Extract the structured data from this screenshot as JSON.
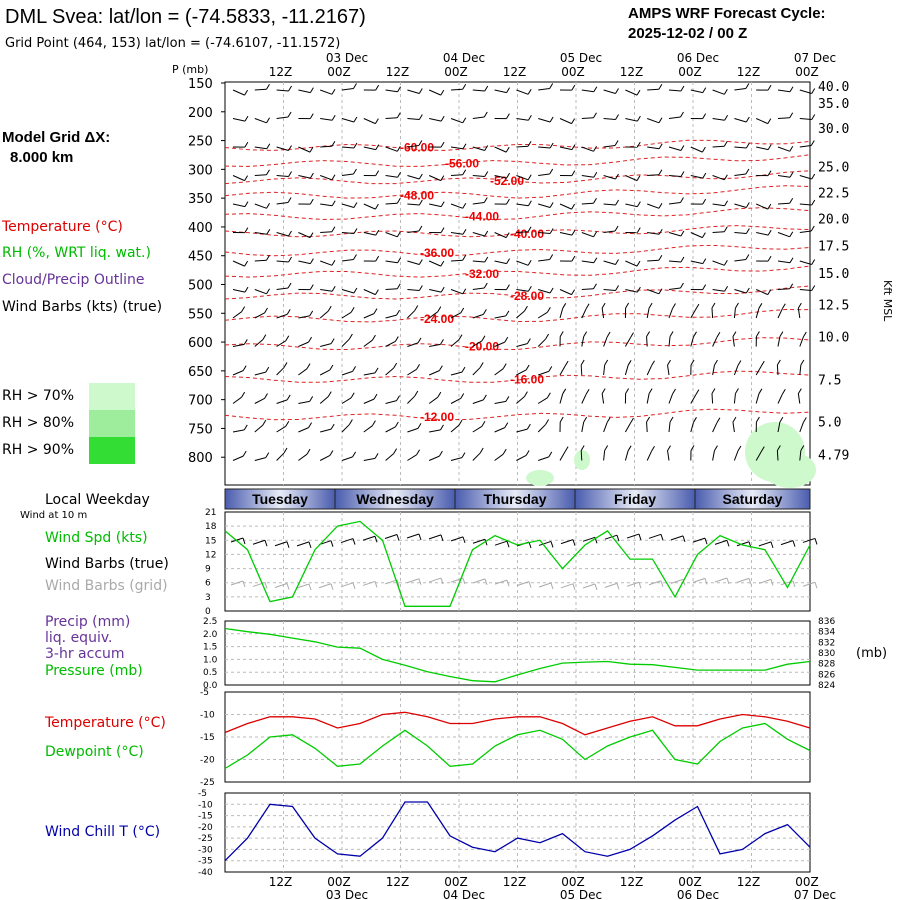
{
  "header": {
    "title": "DML Svea:  lat/lon = (-74.5833, -11.2167)",
    "subtitle": "Grid Point (464, 153) lat/lon = (-74.6107, -11.1572)",
    "cycle_line1": "AMPS WRF Forecast Cycle:",
    "cycle_line2": "2025-12-02 / 00  Z"
  },
  "model_grid": {
    "line1": "Model Grid ΔX:",
    "line2": "8.000 km"
  },
  "legend": {
    "temperature": "Temperature (°C)",
    "rh": "RH (%, WRT liq. wat.)",
    "cloud": "Cloud/Precip Outline",
    "wind_barbs": "Wind Barbs (kts) (true)",
    "rh_levels": [
      {
        "label": "RH > 70%",
        "color": "#cdf9cd"
      },
      {
        "label": "RH > 80%",
        "color": "#9ded9d"
      },
      {
        "label": "RH > 90%",
        "color": "#33dd33"
      }
    ]
  },
  "time_axis": {
    "top_hours": [
      "12Z",
      "00Z",
      "12Z",
      "00Z",
      "12Z",
      "00Z",
      "12Z",
      "00Z",
      "12Z",
      "00Z"
    ],
    "bottom_hours": [
      "12Z",
      "00Z",
      "12Z",
      "00Z",
      "12Z",
      "00Z",
      "12Z",
      "00Z",
      "12Z",
      "00Z"
    ],
    "dates": [
      "03 Dec",
      "04 Dec",
      "05 Dec",
      "06 Dec",
      "07 Dec"
    ],
    "weekdays_label": "Local Weekday",
    "weekdays": [
      "Tuesday",
      "Wednesday",
      "Thursday",
      "Friday",
      "Saturday"
    ],
    "wind10m_label": "Wind at 10 m"
  },
  "colors": {
    "temperature": "#dd0000",
    "dewpoint": "#00cc00",
    "windchill": "#0000aa",
    "wind_spd": "#00cc00",
    "barbs_grid": "#aaaaaa",
    "cloud": "#663399"
  },
  "chart_data": [
    {
      "type": "line",
      "name": "upper-air-cross-section",
      "ylabel_left": "P (mb)",
      "ylabel_right": "Kft MSL",
      "ylim": [
        850,
        150
      ],
      "pressure_ticks": [
        "150",
        "200",
        "250",
        "300",
        "350",
        "400",
        "450",
        "500",
        "550",
        "600",
        "650",
        "700",
        "750",
        "800"
      ],
      "height_ticks": [
        "40.0",
        "35.0",
        "30.0",
        "25.0",
        "22.5",
        "20.0",
        "17.5",
        "15.0",
        "12.5",
        "10.0",
        "7.5",
        "5.0",
        "4.79"
      ],
      "height_tick_pressures": [
        155,
        185,
        228,
        295,
        340,
        385,
        432,
        480,
        535,
        590,
        665,
        738,
        795
      ],
      "isotherms": [
        {
          "label": "-60.00",
          "pressure": 262
        },
        {
          "label": "-56.00",
          "pressure": 290
        },
        {
          "label": "-52.00",
          "pressure": 320
        },
        {
          "label": "-48.00",
          "pressure": 345
        },
        {
          "label": "-44.00",
          "pressure": 382
        },
        {
          "label": "-40.00",
          "pressure": 412
        },
        {
          "label": "-36.00",
          "pressure": 445
        },
        {
          "label": "-32.00",
          "pressure": 482
        },
        {
          "label": "-28.00",
          "pressure": 520
        },
        {
          "label": "-24.00",
          "pressure": 560
        },
        {
          "label": "-20.00",
          "pressure": 608
        },
        {
          "label": "-16.00",
          "pressure": 665
        },
        {
          "label": "-12.00",
          "pressure": 730
        }
      ]
    },
    {
      "type": "line",
      "name": "wind-speed-10m",
      "ylim": [
        0,
        21
      ],
      "yticks": [
        "21",
        "18",
        "15",
        "12",
        "9",
        "6",
        "3",
        "0"
      ],
      "legend": [
        "Wind Spd (kts)",
        "Wind Barbs (true)",
        "Wind Barbs (grid)"
      ],
      "x_hours": [
        0,
        6,
        12,
        18,
        24,
        30,
        36,
        42,
        48,
        54,
        60,
        66,
        72,
        78,
        84,
        90,
        96,
        102,
        108,
        114,
        120,
        126,
        132,
        138,
        144,
        150,
        156
      ],
      "series": [
        {
          "name": "Wind Spd (kts)",
          "values": [
            17,
            13,
            2,
            3,
            13,
            18,
            19,
            15,
            1,
            1,
            1,
            13,
            16,
            14,
            15,
            9,
            14,
            17,
            11,
            11,
            3,
            12,
            16,
            14,
            13,
            5,
            14
          ]
        }
      ]
    },
    {
      "type": "line",
      "name": "precip-pressure",
      "yticks_left": [
        "2.5",
        "2.0",
        "1.5",
        "1.0",
        "0.5",
        "0.0"
      ],
      "yticks_right": [
        "836",
        "834",
        "832",
        "830",
        "828",
        "826",
        "824"
      ],
      "ylim_left": [
        0,
        2.5
      ],
      "ylim_right": [
        824,
        836
      ],
      "right_unit": "(mb)",
      "legend": [
        "Precip (mm)",
        "liq. equiv.",
        "3-hr accum",
        "Pressure (mb)"
      ],
      "x_hours": [
        0,
        6,
        12,
        18,
        24,
        30,
        36,
        42,
        48,
        54,
        60,
        66,
        72,
        78,
        84,
        90,
        96,
        102,
        108,
        114,
        120,
        126,
        132,
        138,
        144,
        150,
        156
      ],
      "series": [
        {
          "name": "Pressure (mb)",
          "values": [
            834.6,
            834.0,
            833.5,
            832.8,
            832.1,
            831.1,
            830.9,
            828.8,
            827.7,
            826.5,
            825.6,
            824.8,
            824.6,
            825.9,
            827.1,
            828.1,
            828.3,
            828.4,
            827.9,
            827.8,
            827.3,
            826.8,
            826.8,
            826.8,
            826.8,
            827.9,
            828.4
          ]
        }
      ]
    },
    {
      "type": "line",
      "name": "temperature-dewpoint",
      "ylim": [
        -25,
        -5
      ],
      "yticks": [
        "-5",
        "-10",
        "-15",
        "-20",
        "-25"
      ],
      "legend": [
        "Temperature (°C)",
        "Dewpoint (°C)"
      ],
      "x_hours": [
        0,
        6,
        12,
        18,
        24,
        30,
        36,
        42,
        48,
        54,
        60,
        66,
        72,
        78,
        84,
        90,
        96,
        102,
        108,
        114,
        120,
        126,
        132,
        138,
        144,
        150,
        156
      ],
      "series": [
        {
          "name": "Temperature (°C)",
          "values": [
            -14,
            -12,
            -10.5,
            -10.5,
            -11,
            -13,
            -12,
            -10,
            -9.5,
            -10.5,
            -12,
            -12,
            -11,
            -10.5,
            -10.5,
            -12,
            -14.5,
            -13,
            -11.5,
            -10.5,
            -12.5,
            -12.5,
            -11,
            -10,
            -10.5,
            -11.5,
            -13
          ]
        },
        {
          "name": "Dewpoint (°C)",
          "values": [
            -22,
            -19,
            -15,
            -14.5,
            -17.5,
            -21.5,
            -21,
            -17,
            -13.5,
            -17,
            -21.5,
            -21,
            -17,
            -14.5,
            -13.5,
            -15.5,
            -20,
            -17,
            -15,
            -13.5,
            -20,
            -21,
            -16,
            -13,
            -12,
            -15.5,
            -18
          ]
        }
      ]
    },
    {
      "type": "line",
      "name": "wind-chill",
      "ylim": [
        -40,
        -5
      ],
      "yticks": [
        "-5",
        "-10",
        "-15",
        "-20",
        "-25",
        "-30",
        "-35",
        "-40"
      ],
      "legend": [
        "Wind Chill T (°C)"
      ],
      "x_hours": [
        0,
        6,
        12,
        18,
        24,
        30,
        36,
        42,
        48,
        54,
        60,
        66,
        72,
        78,
        84,
        90,
        96,
        102,
        108,
        114,
        120,
        126,
        132,
        138,
        144,
        150,
        156
      ],
      "series": [
        {
          "name": "Wind Chill T (°C)",
          "values": [
            -35,
            -25,
            -10,
            -11,
            -25,
            -32,
            -33,
            -25,
            -9,
            -9,
            -24,
            -29,
            -31,
            -25,
            -27,
            -23,
            -31,
            -33,
            -30,
            -24,
            -17,
            -11,
            -32,
            -30,
            -23,
            -19,
            -29
          ]
        }
      ]
    }
  ]
}
